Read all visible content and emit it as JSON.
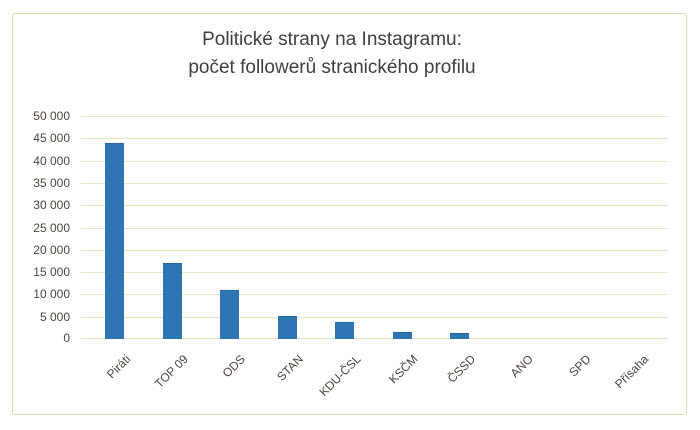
{
  "title": {
    "line1": "Politické strany na Instagramu:",
    "line2": "počet followerů stranického profilu"
  },
  "colors": {
    "bar": "#2e75b5",
    "bar_border": "#27639c",
    "gridline": "#e7e3c2",
    "frame_border": "#ddd8b4",
    "title_text": "#3f3f3f",
    "axis_text": "#4e463c",
    "background": "#ffffff"
  },
  "chart_data": {
    "type": "bar",
    "title": "Politické strany na Instagramu: počet followerů stranického profilu",
    "categories": [
      "Piráti",
      "TOP 09",
      "ODS",
      "STAN",
      "KDU-ČSL",
      "KSČM",
      "ČSSD",
      "ANO",
      "SPD",
      "Přísaha"
    ],
    "values": [
      43900,
      17100,
      11000,
      5200,
      3900,
      1600,
      1300,
      0,
      0,
      0
    ],
    "xlabel": "",
    "ylabel": "",
    "ylim": [
      0,
      50000
    ],
    "ytick_step": 5000,
    "ytick_labels": [
      "0",
      "5 000",
      "10 000",
      "15 000",
      "20 000",
      "25 000",
      "30 000",
      "35 000",
      "40 000",
      "45 000",
      "50 000"
    ],
    "grid": true,
    "legend": false,
    "x_label_rotation_deg": 45,
    "bar_orientation": "vertical"
  }
}
